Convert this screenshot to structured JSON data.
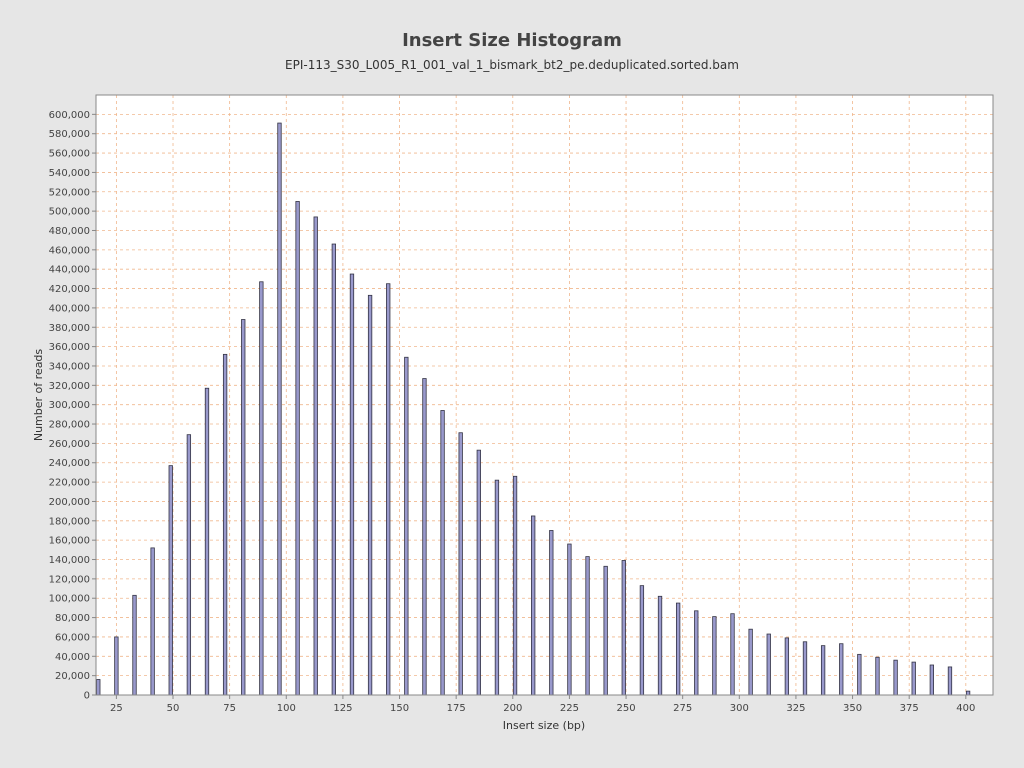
{
  "chart_data": {
    "type": "bar",
    "title": "Insert Size Histogram",
    "subtitle": "EPI-113_S30_L005_R1_001_val_1_bismark_bt2_pe.deduplicated.sorted.bam",
    "xlabel": "Insert size (bp)",
    "ylabel": "Number of reads",
    "xlim": [
      16,
      412
    ],
    "ylim": [
      0,
      620000
    ],
    "xticks": [
      25,
      50,
      75,
      100,
      125,
      150,
      175,
      200,
      225,
      250,
      275,
      300,
      325,
      350,
      375,
      400
    ],
    "yticks": [
      0,
      20000,
      40000,
      60000,
      80000,
      100000,
      120000,
      140000,
      160000,
      180000,
      200000,
      220000,
      240000,
      260000,
      280000,
      300000,
      320000,
      340000,
      360000,
      380000,
      400000,
      420000,
      440000,
      460000,
      480000,
      500000,
      520000,
      540000,
      560000,
      580000,
      600000
    ],
    "grid": true,
    "series_color": "#9999cc",
    "grid_color": "#f0b78d",
    "x": [
      17,
      25,
      33,
      41,
      49,
      57,
      65,
      73,
      81,
      89,
      97,
      105,
      113,
      121,
      129,
      137,
      145,
      153,
      161,
      169,
      177,
      185,
      193,
      201,
      209,
      217,
      225,
      233,
      241,
      249,
      257,
      265,
      273,
      281,
      289,
      297,
      305,
      313,
      321,
      329,
      337,
      345,
      353,
      361,
      369,
      377,
      385,
      393,
      401
    ],
    "values": [
      16000,
      60000,
      103000,
      152000,
      237000,
      269000,
      317000,
      352000,
      388000,
      427000,
      591000,
      510000,
      494000,
      466000,
      435000,
      413000,
      425000,
      349000,
      327000,
      294000,
      271000,
      253000,
      222000,
      226000,
      185000,
      170000,
      156000,
      143000,
      133000,
      139000,
      113000,
      102000,
      95000,
      87000,
      81000,
      84000,
      68000,
      63000,
      59000,
      55000,
      51000,
      53000,
      42000,
      39000,
      36000,
      34000,
      31000,
      29000,
      4000
    ]
  }
}
